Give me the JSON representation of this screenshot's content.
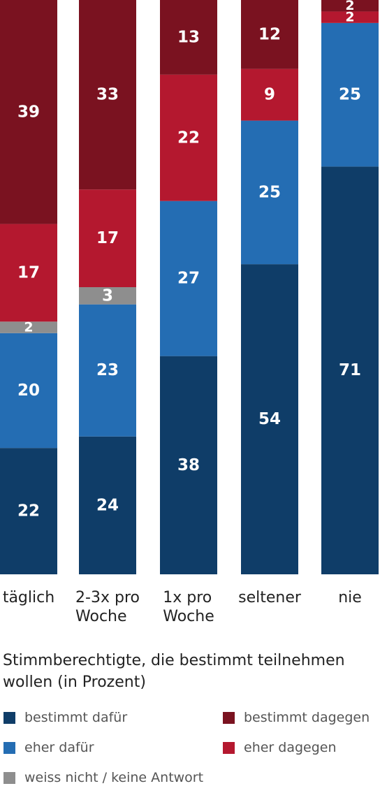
{
  "chart_data": {
    "type": "bar",
    "stacked": true,
    "categories": [
      "täglich",
      "2-3x pro Woche",
      "1x pro Woche",
      "seltener",
      "nie"
    ],
    "category_labels": [
      "täglich",
      "2-3x pro\nWoche",
      "1x pro\nWoche",
      "seltener",
      "nie"
    ],
    "subtitle": "Stimmberechtigte, die bestimmt teilnehmen wollen (in Prozent)",
    "ylim": [
      0,
      100
    ],
    "grid": false,
    "legend_position": "bottom",
    "series": [
      {
        "name": "bestimmt dafür",
        "color": "#0f3d68",
        "values": [
          22,
          24,
          38,
          54,
          71
        ]
      },
      {
        "name": "eher dafür",
        "color": "#246db3",
        "values": [
          20,
          23,
          27,
          25,
          25
        ]
      },
      {
        "name": "weiss nicht / keine Antwort",
        "color": "#8e8e8e",
        "values": [
          2,
          3,
          0,
          0,
          0
        ]
      },
      {
        "name": "eher dagegen",
        "color": "#b4182f",
        "values": [
          17,
          17,
          22,
          9,
          2
        ]
      },
      {
        "name": "bestimmt dagegen",
        "color": "#7a1220",
        "values": [
          39,
          33,
          13,
          12,
          2
        ]
      }
    ]
  },
  "legend": [
    {
      "label": "bestimmt dafür",
      "color": "#0f3d68"
    },
    {
      "label": "bestimmt dagegen",
      "color": "#7a1220"
    },
    {
      "label": "eher dafür",
      "color": "#246db3"
    },
    {
      "label": "eher dagegen",
      "color": "#b4182f"
    },
    {
      "label": "weiss nicht / keine Antwort",
      "color": "#8e8e8e"
    }
  ]
}
